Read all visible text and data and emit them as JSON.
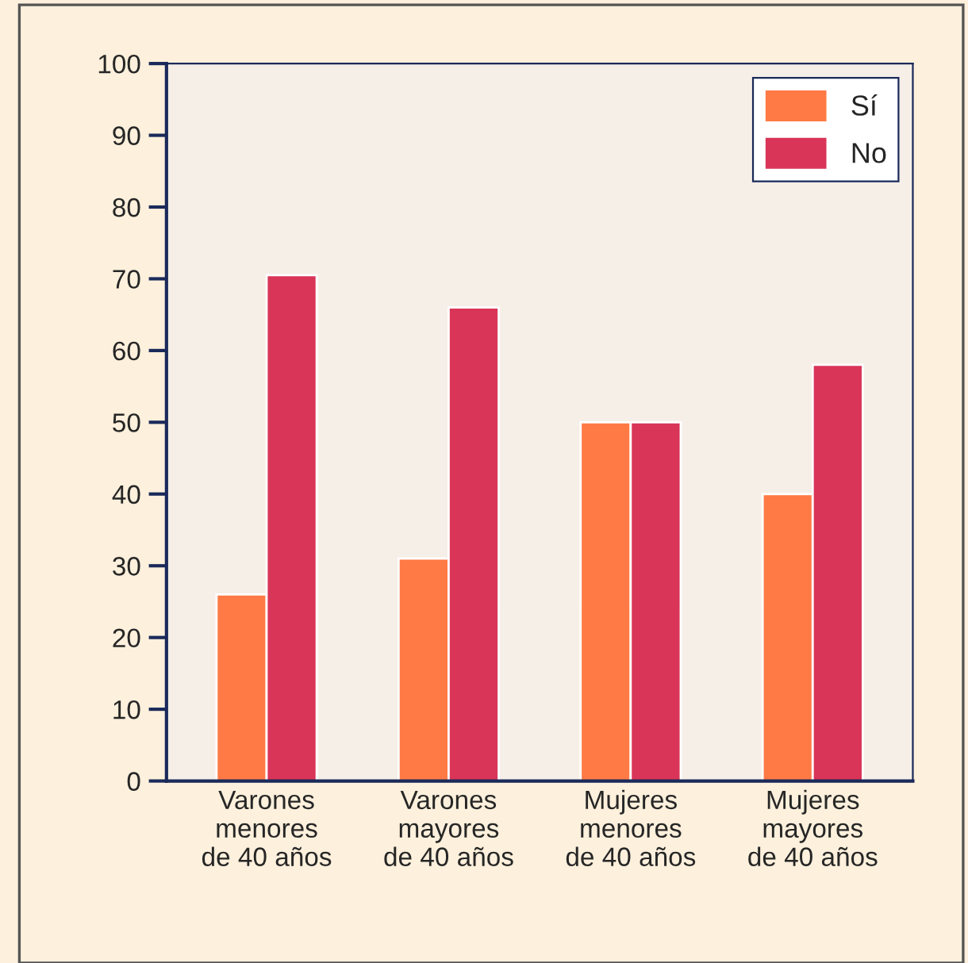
{
  "chart_data": {
    "type": "bar",
    "categories": [
      "Varones\nmenores\nde 40 años",
      "Varones\nmayores\nde 40 años",
      "Mujeres\nmenores\nde 40 años",
      "Mujeres\nmayores\nde 40 años"
    ],
    "series": [
      {
        "name": "Sí",
        "color": "#ff7a45",
        "values": [
          26,
          31,
          50,
          40
        ]
      },
      {
        "name": "No",
        "color": "#d93558",
        "values": [
          70.5,
          66,
          50,
          58
        ]
      }
    ],
    "ylim": [
      0,
      100
    ],
    "yticks": [
      0,
      10,
      20,
      30,
      40,
      50,
      60,
      70,
      80,
      90,
      100
    ],
    "grid": false,
    "legend": "top right"
  }
}
